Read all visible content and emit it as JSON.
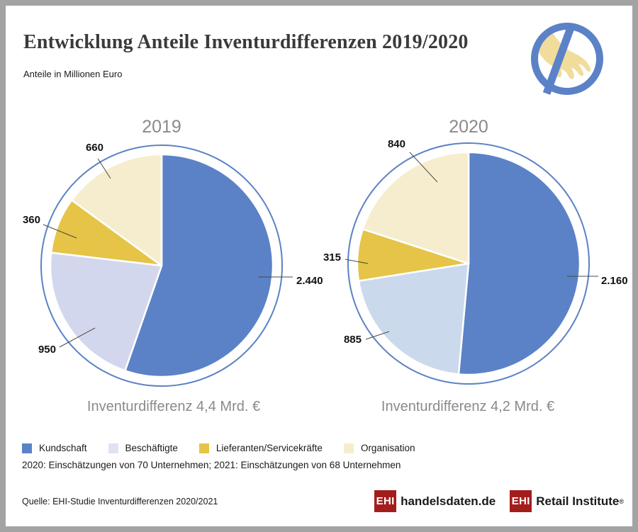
{
  "header": {
    "title": "Entwicklung Anteile Inventurdifferenzen 2019/2020",
    "subtitle": "Anteile in Millionen Euro",
    "icon": "no-shoplifting-hand-icon",
    "icon_colors": {
      "circle": "#5b82c6",
      "hand": "#f1dc9c"
    }
  },
  "chart_data": [
    {
      "type": "pie",
      "title": "2019",
      "caption": "Inventurdifferenz 4,4 Mrd. €",
      "units": "Millionen Euro",
      "categories": [
        "Kundschaft",
        "Beschäftigte",
        "Lieferanten/Servicekräfte",
        "Organisation"
      ],
      "values": [
        2440,
        950,
        360,
        660
      ],
      "value_labels": [
        "2.440",
        "950",
        "360",
        "660"
      ],
      "colors": [
        "#5b82c6",
        "#d2d7ed",
        "#e5c447",
        "#f5edcd"
      ],
      "ring_color": "#5b82c6",
      "start_angle_deg": 0,
      "direction": "clockwise",
      "legend_position": "bottom"
    },
    {
      "type": "pie",
      "title": "2020",
      "caption": "Inventurdifferenz 4,2 Mrd. €",
      "units": "Millionen Euro",
      "categories": [
        "Kundschaft",
        "Beschäftigte",
        "Lieferanten/Servicekräfte",
        "Organisation"
      ],
      "values": [
        2160,
        885,
        315,
        840
      ],
      "value_labels": [
        "2.160",
        "885",
        "315",
        "840"
      ],
      "colors": [
        "#5b82c6",
        "#cbd9ed",
        "#e5c447",
        "#f5edcd"
      ],
      "ring_color": "#5b82c6",
      "start_angle_deg": 0,
      "direction": "clockwise",
      "legend_position": "bottom"
    }
  ],
  "legend": {
    "items": [
      {
        "label": "Kundschaft",
        "color": "#5b82c6"
      },
      {
        "label": "Beschäftigte",
        "color": "#dee2f3"
      },
      {
        "label": "Lieferanten/Servicekräfte",
        "color": "#e5c447"
      },
      {
        "label": "Organisation",
        "color": "#f5edcd"
      }
    ]
  },
  "note": "2020: Einschätzungen von 70 Unternehmen; 2021: Einschätzungen von 68 Unternehmen",
  "footer": {
    "source": "Quelle: EHI-Studie Inventurdifferenzen 2020/2021",
    "logos": [
      {
        "badge": "EHI",
        "text": "handelsdaten.de",
        "registered": "",
        "brand_color": "#a41d1d"
      },
      {
        "badge": "EHI",
        "text": "Retail Institute",
        "registered": "®",
        "brand_color": "#a41d1d"
      }
    ]
  }
}
